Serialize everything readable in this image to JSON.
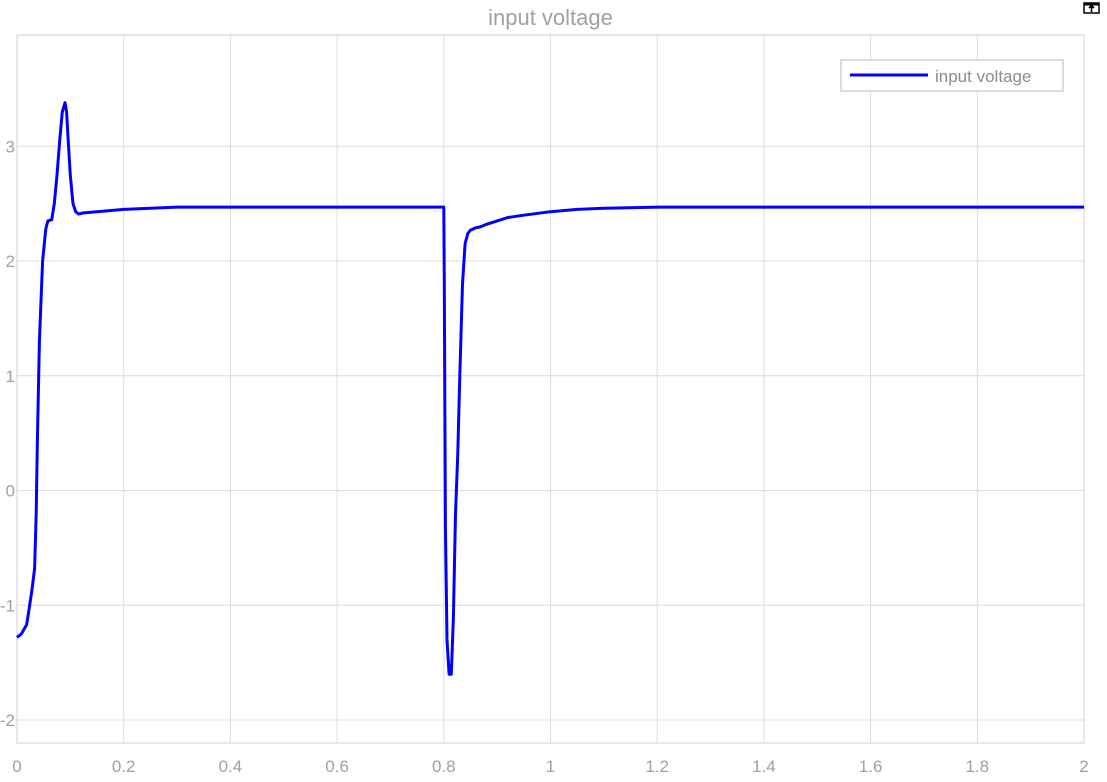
{
  "colors": {
    "series": "#0000ff",
    "grid": "#dcdcdc",
    "axis_text": "#a0a0a0",
    "frame": "#d0d0d0"
  },
  "toolbar": {
    "undock_icon": "undock-icon"
  },
  "chart_data": {
    "type": "line",
    "title": "input voltage",
    "xlabel": "",
    "ylabel": "",
    "xlim": [
      0,
      2
    ],
    "ylim": [
      -2.2,
      3.97
    ],
    "grid": true,
    "legend_position": "top-right",
    "x_ticks": [
      0,
      0.2,
      0.4,
      0.6,
      0.8,
      1,
      1.2,
      1.4,
      1.6,
      1.8,
      2
    ],
    "x_tick_labels": [
      "0",
      "0.2",
      "0.4",
      "0.6",
      "0.8",
      "1",
      "1.2",
      "1.4",
      "1.6",
      "1.8",
      "2"
    ],
    "y_ticks": [
      -2,
      -1,
      0,
      1,
      2,
      3
    ],
    "y_tick_labels": [
      "-2",
      "-1",
      "0",
      "1",
      "2",
      "3"
    ],
    "series": [
      {
        "name": "input voltage",
        "x": [
          0,
          0.008,
          0.018,
          0.023,
          0.028,
          0.033,
          0.036,
          0.038,
          0.042,
          0.048,
          0.054,
          0.058,
          0.065,
          0.07,
          0.075,
          0.08,
          0.085,
          0.09,
          0.093,
          0.096,
          0.1,
          0.105,
          0.11,
          0.115,
          0.125,
          0.15,
          0.2,
          0.3,
          0.4,
          0.5,
          0.6,
          0.7,
          0.8,
          0.801,
          0.803,
          0.806,
          0.81,
          0.814,
          0.818,
          0.822,
          0.826,
          0.83,
          0.835,
          0.84,
          0.845,
          0.85,
          0.86,
          0.87,
          0.88,
          0.9,
          0.92,
          0.95,
          1.0,
          1.05,
          1.1,
          1.2,
          1.3,
          1.4,
          1.6,
          1.8,
          2.0
        ],
        "values": [
          -1.28,
          -1.25,
          -1.17,
          -1.02,
          -0.87,
          -0.68,
          -0.2,
          0.4,
          1.3,
          2.0,
          2.28,
          2.35,
          2.36,
          2.5,
          2.75,
          3.05,
          3.3,
          3.38,
          3.3,
          3.05,
          2.75,
          2.5,
          2.43,
          2.41,
          2.42,
          2.43,
          2.45,
          2.47,
          2.47,
          2.47,
          2.47,
          2.47,
          2.47,
          1.8,
          -0.3,
          -1.3,
          -1.6,
          -1.6,
          -1.1,
          -0.2,
          0.3,
          1.0,
          1.8,
          2.15,
          2.24,
          2.27,
          2.29,
          2.3,
          2.32,
          2.35,
          2.38,
          2.4,
          2.43,
          2.45,
          2.46,
          2.47,
          2.47,
          2.47,
          2.47,
          2.47,
          2.47
        ]
      }
    ]
  }
}
